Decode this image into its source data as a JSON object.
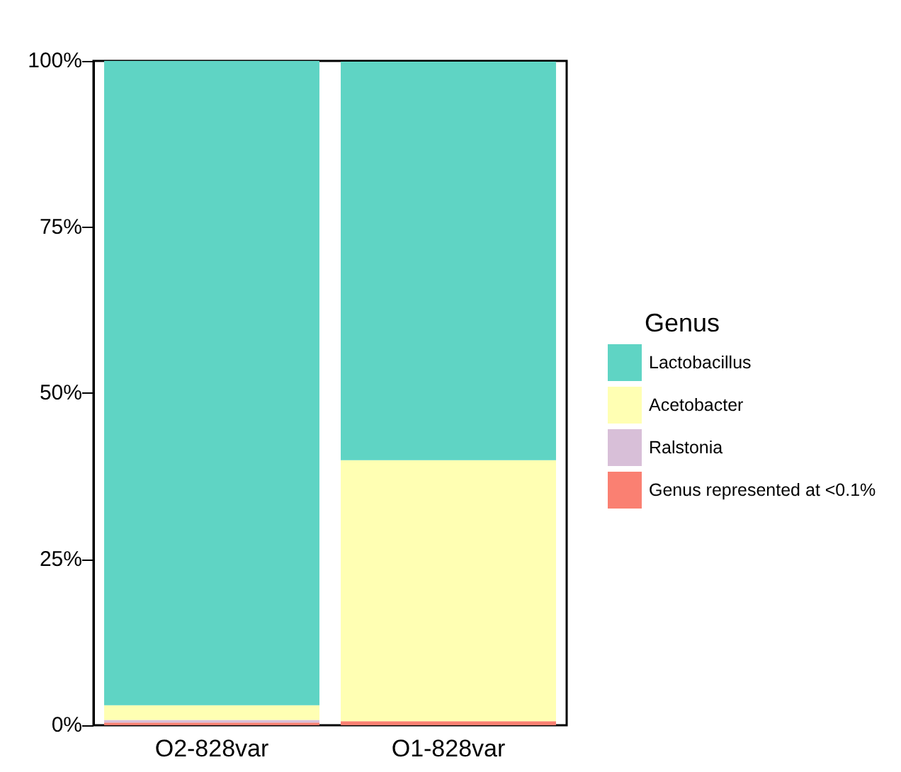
{
  "chart_data": {
    "type": "bar",
    "stacked": true,
    "categories": [
      "O2-828var",
      "O1-828var"
    ],
    "series": [
      {
        "name": "Genus represented at <0.1%",
        "color": "#fa8072",
        "values": [
          0.4,
          0.6
        ]
      },
      {
        "name": "Ralstonia",
        "color": "#d8bfd8",
        "values": [
          0.4,
          null
        ]
      },
      {
        "name": "Acetobacter",
        "color": "#ffffb3",
        "values": [
          2.2,
          39.3
        ]
      },
      {
        "name": "Lactobacillus",
        "color": "#5fd4c4",
        "values": [
          97.0,
          60.0
        ]
      }
    ],
    "ylim": [
      0,
      100
    ],
    "yticks": [
      {
        "value": 0,
        "label": "0%"
      },
      {
        "value": 25,
        "label": "25%"
      },
      {
        "value": 50,
        "label": "50%"
      },
      {
        "value": 75,
        "label": "75%"
      },
      {
        "value": 100,
        "label": "100%"
      }
    ],
    "grid": false,
    "legend": "right",
    "legend_title": "Genus"
  }
}
